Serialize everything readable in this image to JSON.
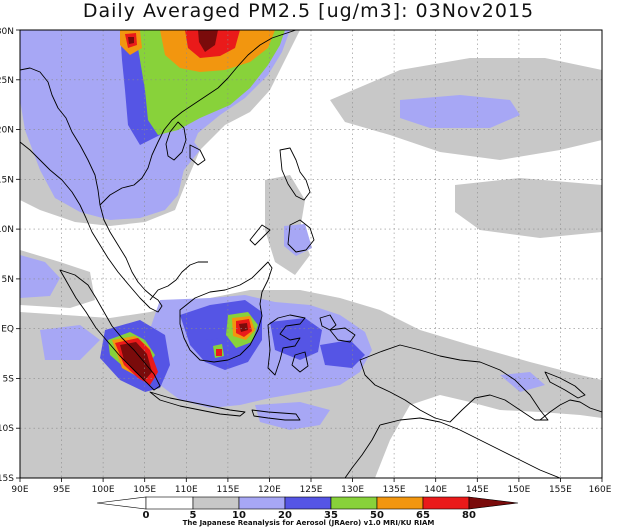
{
  "title": "Daily Averaged PM2.5 [ug/m3]: 03Nov2015",
  "map": {
    "lon_range": [
      90,
      160
    ],
    "lat_range": [
      -15,
      30
    ],
    "lon_tick_values": [
      90,
      95,
      100,
      105,
      110,
      115,
      120,
      125,
      130,
      135,
      140,
      145,
      150,
      155,
      160
    ],
    "lat_tick_values": [
      -15,
      -10,
      -5,
      0,
      5,
      10,
      15,
      20,
      25,
      30
    ],
    "lon_labels": [
      "90E",
      "95E",
      "100E",
      "105E",
      "110E",
      "115E",
      "120E",
      "125E",
      "130E",
      "135E",
      "140E",
      "145E",
      "150E",
      "155E",
      "160E"
    ],
    "lat_labels": [
      "15S",
      "10S",
      "5S",
      "EQ",
      "5N",
      "10N",
      "15N",
      "20N",
      "25N",
      "30N"
    ],
    "gridlines": "dotted"
  },
  "colorbar": {
    "labels": [
      "0",
      "5",
      "10",
      "20",
      "35",
      "50",
      "65",
      "80"
    ],
    "colors": [
      "#ffffff",
      "#c8c8c8",
      "#a7a7f5",
      "#5555e5",
      "#88d23a",
      "#f2960f",
      "#ea1a1a",
      "#7a0b0b"
    ]
  },
  "credit": "The Japanese Reanalysis for Aerosol (JRAero) v1.0 MRI/KU RIAM"
}
